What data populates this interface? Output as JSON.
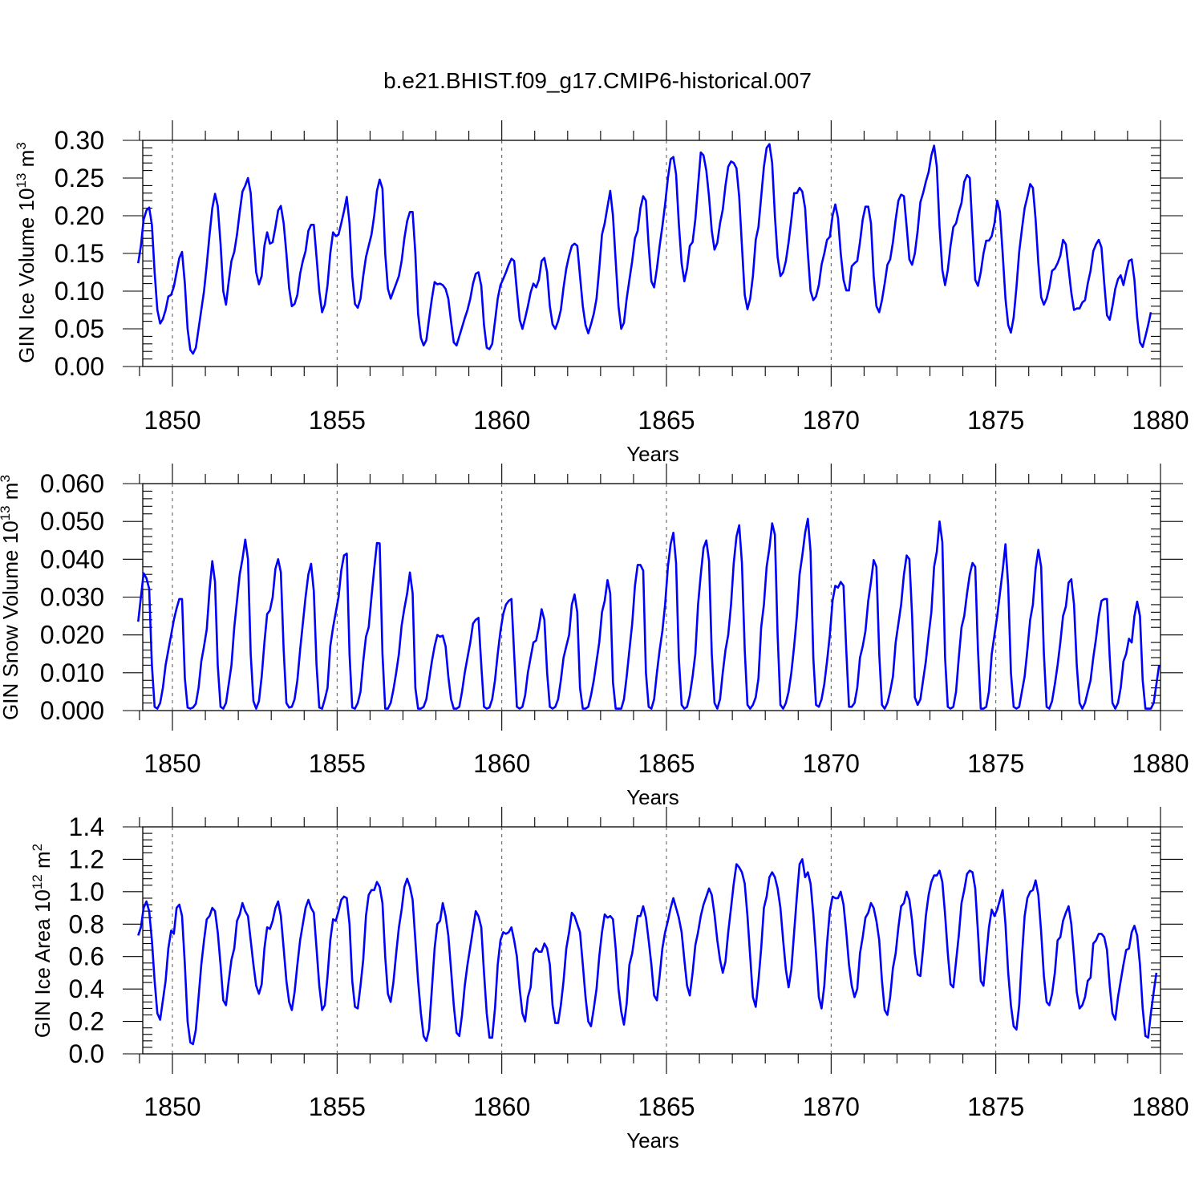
{
  "figure_title": "b.e21.BHIST.f09_g17.CMIP6-historical.007",
  "colors": {
    "series": "#0000ff",
    "axes": "#000000",
    "grid": "#555555"
  },
  "chart_data": [
    {
      "type": "line",
      "title": "",
      "xlabel": "Years",
      "ylabel_parts": {
        "base": "GIN Ice Volume 10",
        "exp": "13",
        "unit": " m",
        "unit_exp": "3"
      },
      "xlim": [
        1848.92,
        1880.0
      ],
      "ylim": [
        0.0,
        0.3
      ],
      "xticks": [
        "1850",
        "1855",
        "1860",
        "1865",
        "1870",
        "1875",
        "1880"
      ],
      "yticks": [
        "0.00",
        "0.05",
        "0.10",
        "0.15",
        "0.20",
        "0.25",
        "0.30"
      ],
      "x_start": 1848.96,
      "x_step": 0.08333,
      "values": [
        0.137,
        0.16,
        0.195,
        0.207,
        0.211,
        0.188,
        0.125,
        0.075,
        0.057,
        0.063,
        0.075,
        0.093,
        0.095,
        0.106,
        0.125,
        0.144,
        0.152,
        0.11,
        0.05,
        0.022,
        0.017,
        0.025,
        0.05,
        0.075,
        0.1,
        0.135,
        0.175,
        0.21,
        0.229,
        0.213,
        0.163,
        0.1,
        0.082,
        0.113,
        0.14,
        0.152,
        0.175,
        0.205,
        0.232,
        0.24,
        0.25,
        0.23,
        0.175,
        0.125,
        0.109,
        0.12,
        0.16,
        0.178,
        0.163,
        0.165,
        0.185,
        0.207,
        0.213,
        0.19,
        0.15,
        0.104,
        0.08,
        0.083,
        0.095,
        0.123,
        0.14,
        0.153,
        0.18,
        0.188,
        0.188,
        0.145,
        0.1,
        0.072,
        0.082,
        0.108,
        0.15,
        0.178,
        0.173,
        0.175,
        0.19,
        0.206,
        0.225,
        0.19,
        0.12,
        0.083,
        0.078,
        0.09,
        0.12,
        0.145,
        0.16,
        0.175,
        0.2,
        0.233,
        0.248,
        0.236,
        0.15,
        0.103,
        0.09,
        0.1,
        0.11,
        0.12,
        0.14,
        0.17,
        0.193,
        0.205,
        0.205,
        0.15,
        0.07,
        0.038,
        0.028,
        0.035,
        0.063,
        0.09,
        0.112,
        0.109,
        0.11,
        0.108,
        0.103,
        0.09,
        0.06,
        0.032,
        0.028,
        0.04,
        0.052,
        0.064,
        0.075,
        0.09,
        0.11,
        0.123,
        0.125,
        0.107,
        0.055,
        0.025,
        0.023,
        0.03,
        0.06,
        0.09,
        0.108,
        0.116,
        0.125,
        0.135,
        0.143,
        0.14,
        0.1,
        0.062,
        0.05,
        0.064,
        0.08,
        0.098,
        0.11,
        0.105,
        0.115,
        0.14,
        0.144,
        0.125,
        0.08,
        0.056,
        0.05,
        0.06,
        0.075,
        0.105,
        0.13,
        0.147,
        0.16,
        0.163,
        0.16,
        0.12,
        0.08,
        0.055,
        0.044,
        0.056,
        0.07,
        0.09,
        0.13,
        0.175,
        0.19,
        0.212,
        0.233,
        0.2,
        0.14,
        0.08,
        0.05,
        0.058,
        0.09,
        0.115,
        0.14,
        0.17,
        0.18,
        0.21,
        0.226,
        0.22,
        0.16,
        0.113,
        0.105,
        0.13,
        0.16,
        0.186,
        0.215,
        0.25,
        0.275,
        0.278,
        0.255,
        0.19,
        0.137,
        0.113,
        0.13,
        0.16,
        0.165,
        0.195,
        0.24,
        0.284,
        0.28,
        0.26,
        0.225,
        0.18,
        0.155,
        0.164,
        0.19,
        0.208,
        0.24,
        0.265,
        0.272,
        0.27,
        0.263,
        0.225,
        0.16,
        0.095,
        0.076,
        0.09,
        0.12,
        0.168,
        0.185,
        0.225,
        0.265,
        0.29,
        0.295,
        0.27,
        0.2,
        0.145,
        0.12,
        0.125,
        0.14,
        0.165,
        0.195,
        0.23,
        0.23,
        0.237,
        0.232,
        0.21,
        0.15,
        0.1,
        0.088,
        0.093,
        0.108,
        0.135,
        0.15,
        0.168,
        0.172,
        0.2,
        0.215,
        0.197,
        0.15,
        0.115,
        0.101,
        0.101,
        0.133,
        0.137,
        0.14,
        0.165,
        0.195,
        0.212,
        0.212,
        0.19,
        0.12,
        0.08,
        0.072,
        0.088,
        0.11,
        0.135,
        0.142,
        0.165,
        0.195,
        0.22,
        0.228,
        0.226,
        0.185,
        0.142,
        0.135,
        0.15,
        0.18,
        0.218,
        0.23,
        0.245,
        0.258,
        0.28,
        0.293,
        0.265,
        0.185,
        0.128,
        0.108,
        0.128,
        0.16,
        0.185,
        0.19,
        0.205,
        0.217,
        0.245,
        0.254,
        0.25,
        0.18,
        0.115,
        0.107,
        0.125,
        0.15,
        0.167,
        0.167,
        0.173,
        0.19,
        0.22,
        0.205,
        0.15,
        0.09,
        0.055,
        0.045,
        0.065,
        0.105,
        0.152,
        0.182,
        0.21,
        0.225,
        0.242,
        0.237,
        0.195,
        0.137,
        0.092,
        0.082,
        0.09,
        0.105,
        0.127,
        0.13,
        0.137,
        0.147,
        0.168,
        0.162,
        0.13,
        0.098,
        0.075,
        0.077,
        0.077,
        0.085,
        0.088,
        0.11,
        0.127,
        0.153,
        0.162,
        0.168,
        0.158,
        0.11,
        0.068,
        0.062,
        0.08,
        0.103,
        0.116,
        0.121,
        0.108,
        0.125,
        0.14,
        0.142,
        0.115,
        0.065,
        0.032,
        0.026,
        0.04,
        0.055,
        0.072
      ]
    },
    {
      "type": "line",
      "title": "",
      "xlabel": "Years",
      "ylabel_parts": {
        "base": "GIN Snow Volume 10",
        "exp": "13",
        "unit": " m",
        "unit_exp": "3"
      },
      "xlim": [
        1848.92,
        1880.0
      ],
      "ylim": [
        0.0,
        0.06
      ],
      "xticks": [
        "1850",
        "1855",
        "1860",
        "1865",
        "1870",
        "1875",
        "1880"
      ],
      "yticks": [
        "0.000",
        "0.010",
        "0.020",
        "0.030",
        "0.040",
        "0.050",
        "0.060"
      ],
      "x_start": 1848.96,
      "x_step": 0.08333,
      "values": [
        0.0235,
        0.03,
        0.0363,
        0.035,
        0.0322,
        0.012,
        0.001,
        0.0005,
        0.002,
        0.006,
        0.012,
        0.016,
        0.02,
        0.024,
        0.027,
        0.0295,
        0.0295,
        0.0085,
        0.0008,
        0.0005,
        0.0008,
        0.0018,
        0.006,
        0.013,
        0.017,
        0.0215,
        0.032,
        0.0395,
        0.034,
        0.012,
        0.001,
        0.0005,
        0.002,
        0.007,
        0.012,
        0.022,
        0.029,
        0.036,
        0.04,
        0.0452,
        0.04,
        0.015,
        0.0025,
        0.0005,
        0.0025,
        0.009,
        0.018,
        0.0255,
        0.0265,
        0.03,
        0.0375,
        0.04,
        0.0365,
        0.016,
        0.002,
        0.0008,
        0.001,
        0.003,
        0.008,
        0.016,
        0.023,
        0.03,
        0.036,
        0.0388,
        0.0315,
        0.012,
        0.0008,
        0.0005,
        0.003,
        0.006,
        0.017,
        0.022,
        0.026,
        0.03,
        0.037,
        0.041,
        0.0415,
        0.015,
        0.0008,
        0.0005,
        0.002,
        0.005,
        0.013,
        0.0195,
        0.022,
        0.03,
        0.0375,
        0.0443,
        0.0442,
        0.015,
        0.0005,
        0.0005,
        0.002,
        0.0055,
        0.01,
        0.015,
        0.0225,
        0.027,
        0.031,
        0.0365,
        0.031,
        0.006,
        0.0005,
        0.0005,
        0.001,
        0.003,
        0.008,
        0.013,
        0.017,
        0.02,
        0.0195,
        0.0198,
        0.017,
        0.009,
        0.003,
        0.0005,
        0.0005,
        0.001,
        0.005,
        0.01,
        0.014,
        0.018,
        0.023,
        0.024,
        0.0245,
        0.012,
        0.001,
        0.0005,
        0.0008,
        0.003,
        0.008,
        0.015,
        0.021,
        0.0255,
        0.028,
        0.029,
        0.0295,
        0.015,
        0.001,
        0.0005,
        0.001,
        0.004,
        0.01,
        0.014,
        0.018,
        0.0185,
        0.022,
        0.0268,
        0.024,
        0.01,
        0.001,
        0.0005,
        0.001,
        0.003,
        0.008,
        0.014,
        0.017,
        0.02,
        0.028,
        0.0307,
        0.026,
        0.006,
        0.0005,
        0.0005,
        0.001,
        0.004,
        0.008,
        0.013,
        0.018,
        0.026,
        0.029,
        0.0345,
        0.031,
        0.0075,
        0.0005,
        0.0005,
        0.0005,
        0.003,
        0.009,
        0.016,
        0.023,
        0.033,
        0.0385,
        0.0385,
        0.037,
        0.01,
        0.001,
        0.0005,
        0.003,
        0.01,
        0.016,
        0.021,
        0.028,
        0.038,
        0.044,
        0.047,
        0.039,
        0.014,
        0.0015,
        0.0005,
        0.001,
        0.004,
        0.009,
        0.015,
        0.028,
        0.036,
        0.043,
        0.045,
        0.0395,
        0.015,
        0.002,
        0.0005,
        0.003,
        0.01,
        0.016,
        0.02,
        0.028,
        0.039,
        0.046,
        0.049,
        0.039,
        0.016,
        0.0015,
        0.0005,
        0.0015,
        0.0035,
        0.0085,
        0.022,
        0.028,
        0.038,
        0.043,
        0.0495,
        0.0465,
        0.02,
        0.0015,
        0.0005,
        0.002,
        0.005,
        0.01,
        0.017,
        0.025,
        0.036,
        0.041,
        0.047,
        0.0507,
        0.042,
        0.014,
        0.0015,
        0.001,
        0.003,
        0.007,
        0.013,
        0.02,
        0.029,
        0.033,
        0.0325,
        0.034,
        0.033,
        0.016,
        0.001,
        0.001,
        0.002,
        0.006,
        0.014,
        0.017,
        0.021,
        0.029,
        0.034,
        0.0398,
        0.038,
        0.015,
        0.0015,
        0.0005,
        0.002,
        0.005,
        0.009,
        0.018,
        0.023,
        0.028,
        0.036,
        0.041,
        0.04,
        0.025,
        0.0035,
        0.0015,
        0.003,
        0.008,
        0.013,
        0.02,
        0.026,
        0.038,
        0.042,
        0.05,
        0.0445,
        0.014,
        0.001,
        0.0005,
        0.001,
        0.005,
        0.014,
        0.022,
        0.025,
        0.031,
        0.036,
        0.039,
        0.038,
        0.016,
        0.0005,
        0.0005,
        0.001,
        0.005,
        0.015,
        0.02,
        0.025,
        0.031,
        0.037,
        0.044,
        0.033,
        0.01,
        0.001,
        0.0005,
        0.001,
        0.005,
        0.009,
        0.016,
        0.024,
        0.028,
        0.0375,
        0.0425,
        0.038,
        0.015,
        0.001,
        0.0005,
        0.0025,
        0.007,
        0.012,
        0.018,
        0.025,
        0.0275,
        0.0338,
        0.0347,
        0.028,
        0.012,
        0.002,
        0.0005,
        0.002,
        0.005,
        0.008,
        0.014,
        0.019,
        0.025,
        0.029,
        0.0295,
        0.0295,
        0.014,
        0.002,
        0.0005,
        0.002,
        0.006,
        0.013,
        0.015,
        0.019,
        0.018,
        0.025,
        0.0288,
        0.025,
        0.008,
        0.0005,
        0.0005,
        0.0005,
        0.002,
        0.007,
        0.012
      ]
    },
    {
      "type": "line",
      "title": "",
      "xlabel": "Years",
      "ylabel_parts": {
        "base": "GIN Ice Area 10",
        "exp": "12",
        "unit": " m",
        "unit_exp": "2"
      },
      "xlim": [
        1848.92,
        1880.0
      ],
      "ylim": [
        0.0,
        1.4
      ],
      "xticks": [
        "1850",
        "1855",
        "1860",
        "1865",
        "1870",
        "1875",
        "1880"
      ],
      "yticks": [
        "0.0",
        "0.2",
        "0.4",
        "0.6",
        "0.8",
        "1.0",
        "1.2",
        "1.4"
      ],
      "x_start": 1848.96,
      "x_step": 0.08333,
      "values": [
        0.73,
        0.78,
        0.9,
        0.94,
        0.88,
        0.7,
        0.45,
        0.25,
        0.21,
        0.33,
        0.45,
        0.65,
        0.76,
        0.74,
        0.9,
        0.92,
        0.85,
        0.55,
        0.2,
        0.07,
        0.06,
        0.15,
        0.35,
        0.55,
        0.7,
        0.83,
        0.85,
        0.9,
        0.88,
        0.75,
        0.55,
        0.33,
        0.3,
        0.45,
        0.58,
        0.65,
        0.82,
        0.86,
        0.93,
        0.88,
        0.85,
        0.7,
        0.55,
        0.42,
        0.37,
        0.43,
        0.65,
        0.78,
        0.77,
        0.82,
        0.9,
        0.94,
        0.85,
        0.65,
        0.45,
        0.32,
        0.27,
        0.38,
        0.55,
        0.7,
        0.8,
        0.9,
        0.95,
        0.9,
        0.87,
        0.65,
        0.42,
        0.27,
        0.3,
        0.48,
        0.7,
        0.83,
        0.82,
        0.88,
        0.95,
        0.97,
        0.96,
        0.8,
        0.45,
        0.29,
        0.28,
        0.42,
        0.58,
        0.85,
        0.98,
        1.01,
        1.01,
        1.06,
        1.03,
        0.93,
        0.6,
        0.37,
        0.32,
        0.44,
        0.62,
        0.78,
        0.89,
        1.03,
        1.08,
        1.03,
        0.95,
        0.7,
        0.45,
        0.25,
        0.11,
        0.08,
        0.15,
        0.4,
        0.65,
        0.8,
        0.82,
        0.93,
        0.85,
        0.73,
        0.52,
        0.3,
        0.13,
        0.11,
        0.24,
        0.42,
        0.55,
        0.66,
        0.77,
        0.88,
        0.85,
        0.78,
        0.5,
        0.25,
        0.1,
        0.1,
        0.28,
        0.55,
        0.7,
        0.75,
        0.74,
        0.75,
        0.78,
        0.7,
        0.6,
        0.4,
        0.25,
        0.2,
        0.35,
        0.41,
        0.62,
        0.65,
        0.63,
        0.63,
        0.68,
        0.65,
        0.55,
        0.3,
        0.19,
        0.19,
        0.3,
        0.45,
        0.65,
        0.75,
        0.87,
        0.85,
        0.8,
        0.75,
        0.55,
        0.35,
        0.2,
        0.17,
        0.28,
        0.4,
        0.6,
        0.75,
        0.86,
        0.84,
        0.85,
        0.83,
        0.65,
        0.4,
        0.26,
        0.18,
        0.31,
        0.55,
        0.62,
        0.74,
        0.85,
        0.85,
        0.91,
        0.84,
        0.7,
        0.55,
        0.36,
        0.33,
        0.48,
        0.65,
        0.75,
        0.82,
        0.9,
        0.96,
        0.9,
        0.84,
        0.75,
        0.58,
        0.42,
        0.36,
        0.5,
        0.67,
        0.75,
        0.85,
        0.92,
        0.97,
        1.02,
        0.98,
        0.86,
        0.7,
        0.58,
        0.5,
        0.57,
        0.75,
        0.9,
        1.05,
        1.17,
        1.15,
        1.12,
        1.05,
        0.85,
        0.6,
        0.35,
        0.29,
        0.45,
        0.65,
        0.9,
        0.97,
        1.09,
        1.12,
        1.09,
        1.02,
        0.9,
        0.7,
        0.52,
        0.41,
        0.52,
        0.75,
        0.97,
        1.17,
        1.2,
        1.09,
        1.12,
        1.05,
        0.86,
        0.62,
        0.35,
        0.28,
        0.42,
        0.68,
        0.88,
        0.97,
        0.96,
        0.96,
        1.0,
        0.92,
        0.75,
        0.55,
        0.42,
        0.35,
        0.4,
        0.62,
        0.72,
        0.84,
        0.87,
        0.93,
        0.9,
        0.82,
        0.7,
        0.45,
        0.27,
        0.24,
        0.35,
        0.53,
        0.62,
        0.78,
        0.91,
        0.93,
        1.0,
        0.95,
        0.82,
        0.62,
        0.49,
        0.48,
        0.65,
        0.85,
        0.98,
        1.06,
        1.1,
        1.1,
        1.13,
        1.06,
        0.86,
        0.62,
        0.43,
        0.41,
        0.57,
        0.73,
        0.93,
        1.01,
        1.11,
        1.13,
        1.12,
        1.02,
        0.75,
        0.45,
        0.42,
        0.6,
        0.78,
        0.89,
        0.85,
        0.89,
        0.95,
        1.01,
        0.8,
        0.5,
        0.3,
        0.17,
        0.15,
        0.3,
        0.6,
        0.85,
        0.96,
        1.0,
        1.01,
        1.07,
        0.98,
        0.75,
        0.48,
        0.32,
        0.3,
        0.37,
        0.5,
        0.7,
        0.72,
        0.82,
        0.87,
        0.91,
        0.8,
        0.6,
        0.38,
        0.28,
        0.3,
        0.35,
        0.45,
        0.47,
        0.68,
        0.7,
        0.74,
        0.74,
        0.72,
        0.64,
        0.42,
        0.25,
        0.21,
        0.35,
        0.45,
        0.55,
        0.64,
        0.65,
        0.75,
        0.79,
        0.73,
        0.55,
        0.28,
        0.11,
        0.1,
        0.25,
        0.38,
        0.5
      ]
    }
  ]
}
